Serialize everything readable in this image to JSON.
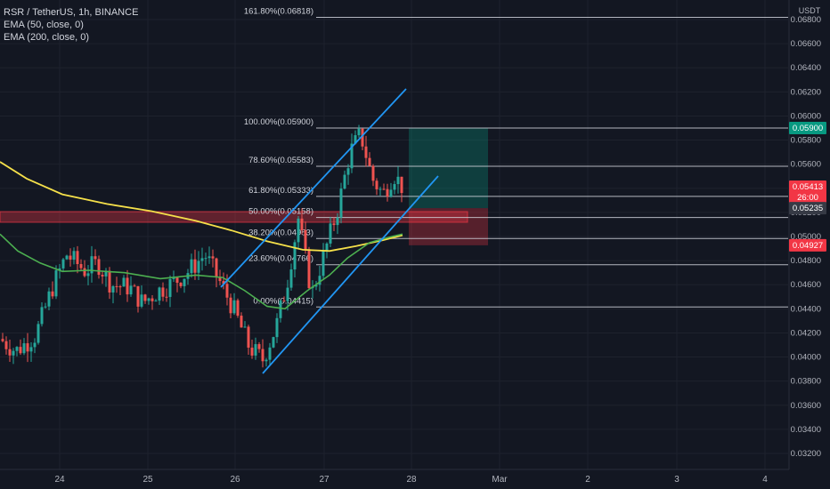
{
  "legend": {
    "symbol": "RSR / TetherUS, 1h, BINANCE",
    "ema50": "EMA (50, close, 0)",
    "ema200": "EMA (200, close, 0)"
  },
  "price_axis": {
    "currency": "USDT",
    "ticks": [
      "0.06800",
      "0.06600",
      "0.06400",
      "0.06200",
      "0.06000",
      "0.05800",
      "0.05600",
      "0.05400",
      "0.05200",
      "0.05000",
      "0.04800",
      "0.04600",
      "0.04400",
      "0.04200",
      "0.04000",
      "0.03800",
      "0.03600",
      "0.03400",
      "0.03200"
    ]
  },
  "time_axis": {
    "ticks": [
      "24",
      "25",
      "26",
      "27",
      "28",
      "Mar",
      "2",
      "3",
      "4"
    ]
  },
  "price_labels": {
    "target": {
      "value": "0.05900",
      "color": "#089981"
    },
    "current": {
      "value": "0.05413",
      "countdown": "26:00",
      "color": "#f23645"
    },
    "entry": {
      "value": "0.05235",
      "color": "#363a45"
    },
    "stop": {
      "value": "0.04927",
      "color": "#f23645"
    }
  },
  "fibonacci": [
    {
      "label": "161.80%(0.06818)",
      "price": 0.06818
    },
    {
      "label": "100.00%(0.05900)",
      "price": 0.059
    },
    {
      "label": "78.60%(0.05583)",
      "price": 0.05583
    },
    {
      "label": "61.80%(0.05333)",
      "price": 0.05333
    },
    {
      "label": "50.00%(0.05158)",
      "price": 0.05158
    },
    {
      "label": "38.20%(0.04983)",
      "price": 0.04983
    },
    {
      "label": "23.60%(0.04766)",
      "price": 0.04766
    },
    {
      "label": "0.00%(0.04415)",
      "price": 0.04415
    }
  ],
  "colors": {
    "background": "#131722",
    "grid": "#1e222d",
    "up": "#26a69a",
    "down": "#ef5350",
    "ema50": "#4caf50",
    "ema200": "#f5e04a",
    "channel": "#2196f3",
    "fib_line": "#d1d4dc",
    "axis_text": "#b2b5be"
  }
}
